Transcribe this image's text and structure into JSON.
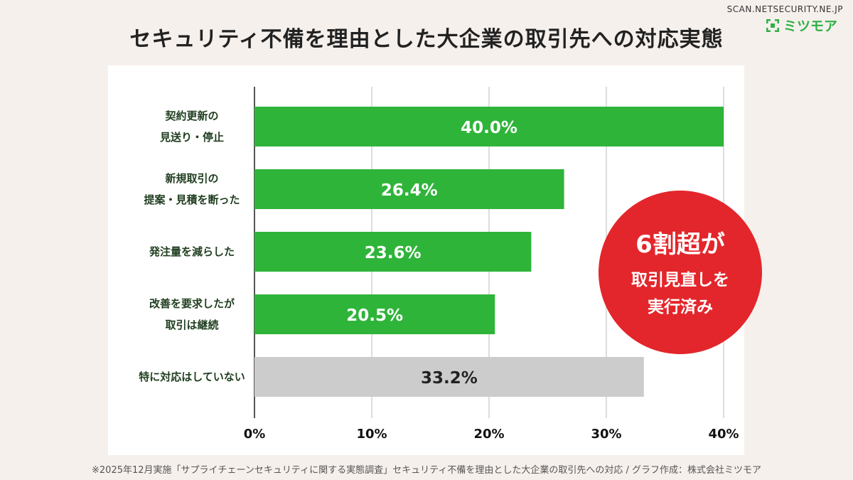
{
  "site": "SCAN.NETSECURITY.NE.JP",
  "brand": {
    "name": "ミツモア",
    "icon": "mitsumore-logo-icon",
    "color": "#2fb043"
  },
  "callout": {
    "line1": "6割超が",
    "line2": "取引見直しを",
    "line3": "実行済み",
    "color": "#e3262b"
  },
  "footnote": "※2025年12月実施「サプライチェーンセキュリティに関する実態調査」セキュリティ不備を理由とした大企業の取引先への対応 / グラフ作成：株式会社ミツモア",
  "chart_data": {
    "type": "bar",
    "orientation": "horizontal",
    "title": "セキュリティ不備を理由とした大企業の取引先への対応実態",
    "categories": [
      [
        "契約更新の",
        "見送り・停止"
      ],
      [
        "新規取引の",
        "提案・見積を断った"
      ],
      [
        "発注量を減らした"
      ],
      [
        "改善を要求したが",
        "取引は継続"
      ],
      [
        "特に対応はしていない"
      ]
    ],
    "values": [
      40.0,
      26.4,
      23.6,
      20.5,
      33.2
    ],
    "value_labels": [
      "40.0%",
      "26.4%",
      "23.6%",
      "20.5%",
      "33.2%"
    ],
    "bar_colors": [
      "#2fb43a",
      "#2fb43a",
      "#2fb43a",
      "#2fb43a",
      "#cccccc"
    ],
    "label_colors": [
      "#ffffff",
      "#ffffff",
      "#ffffff",
      "#ffffff",
      "#222222"
    ],
    "xlim": [
      0,
      40
    ],
    "xticks": [
      0,
      10,
      20,
      30,
      40
    ],
    "xtick_labels": [
      "0%",
      "10%",
      "20%",
      "30%",
      "40%"
    ],
    "grid": true,
    "legend": "none"
  }
}
